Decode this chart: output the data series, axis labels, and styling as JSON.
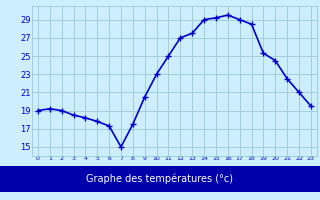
{
  "hours": [
    0,
    1,
    2,
    3,
    4,
    5,
    6,
    7,
    8,
    9,
    10,
    11,
    12,
    13,
    14,
    15,
    16,
    17,
    18,
    19,
    20,
    21,
    22,
    23
  ],
  "temperatures": [
    19,
    19.2,
    19,
    18.5,
    18.2,
    17.8,
    17.3,
    15.0,
    17.5,
    20.5,
    23.0,
    25.0,
    27.0,
    27.5,
    29.0,
    29.2,
    29.5,
    29.0,
    28.5,
    25.3,
    24.5,
    22.5,
    21.0,
    19.5
  ],
  "line_color": "#0000cc",
  "bg_color": "#cceeff",
  "grid_color": "#99cccc",
  "xlabel": "Graphe des températures (°c)",
  "xlabel_bg": "#0000aa",
  "xlabel_text_color": "#ffffff",
  "yticks": [
    15,
    17,
    19,
    21,
    23,
    25,
    27,
    29
  ],
  "ylim": [
    14.0,
    30.5
  ],
  "xlim": [
    -0.5,
    23.5
  ],
  "xtick_labels": [
    "0",
    "1",
    "2",
    "3",
    "4",
    "5",
    "6",
    "7",
    "8",
    "9",
    "10",
    "11",
    "12",
    "13",
    "14",
    "15",
    "16",
    "17",
    "18",
    "19",
    "20",
    "21",
    "22",
    "23"
  ],
  "marker_size": 4,
  "line_width": 1.2,
  "figsize": [
    3.2,
    2.0
  ],
  "dpi": 100
}
